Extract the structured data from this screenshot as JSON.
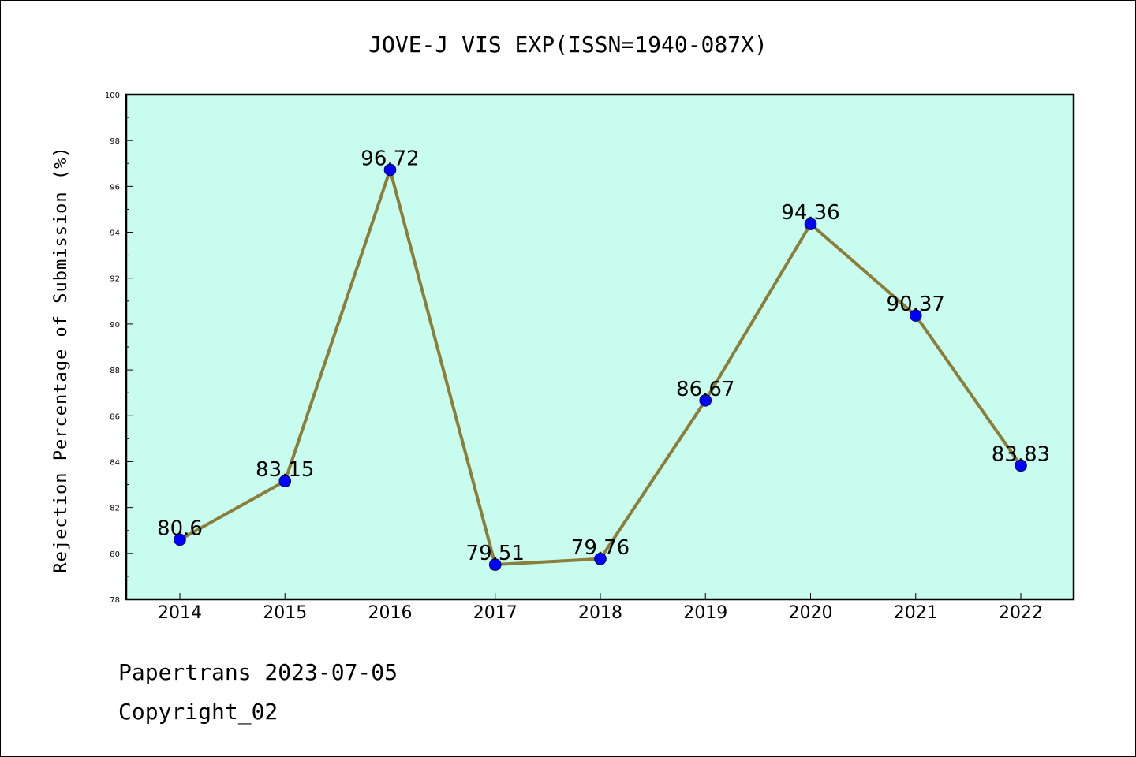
{
  "chart_data": {
    "type": "line",
    "title": "JOVE-J VIS EXP(ISSN=1940-087X)",
    "xlabel": "",
    "ylabel": "Rejection Percentage of Submission (%)",
    "categories": [
      "2014",
      "2015",
      "2016",
      "2017",
      "2018",
      "2019",
      "2020",
      "2021",
      "2022"
    ],
    "series": [
      {
        "values": [
          80.6,
          83.15,
          96.72,
          79.51,
          79.76,
          86.67,
          94.36,
          90.37,
          83.83
        ],
        "labels": [
          "80.6",
          "83.15",
          "96.72",
          "79.51",
          "79.76",
          "86.67",
          "94.36",
          "90.37",
          "83.83"
        ]
      }
    ],
    "ylim": [
      78,
      100
    ],
    "yticks": [
      78,
      80,
      82,
      84,
      86,
      88,
      90,
      92,
      94,
      96,
      98,
      100
    ],
    "grid": false,
    "colors": {
      "plot_background": "#c8fcee",
      "line": "#8b7d3a",
      "marker": "#0000ff"
    }
  },
  "footer": {
    "line1": "Papertrans 2023-07-05",
    "line2": "Copyright_02"
  }
}
